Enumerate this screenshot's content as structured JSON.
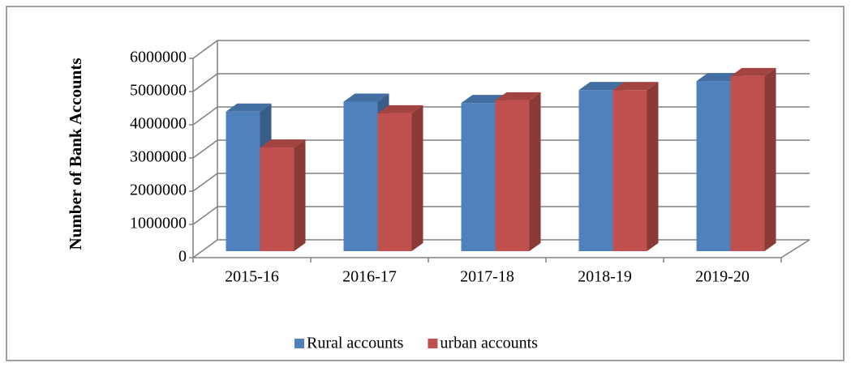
{
  "chart_data": {
    "type": "bar3d",
    "y_label": "Number of Bank Accounts",
    "categories": [
      "2015-16",
      "2016-17",
      "2017-18",
      "2018-19",
      "2019-20"
    ],
    "series": [
      {
        "name": "Rural accounts",
        "color": "#4F81BD",
        "values": [
          4200000,
          4500000,
          4460000,
          4850000,
          5120000
        ]
      },
      {
        "name": "urban accounts",
        "color": "#C0504D",
        "values": [
          3120000,
          4150000,
          4540000,
          4850000,
          5270000
        ]
      }
    ],
    "ylim": [
      0,
      6000000
    ],
    "yticks": [
      0,
      1000000,
      2000000,
      3000000,
      4000000,
      5000000,
      6000000
    ],
    "grid": true,
    "legend": "bottom"
  }
}
